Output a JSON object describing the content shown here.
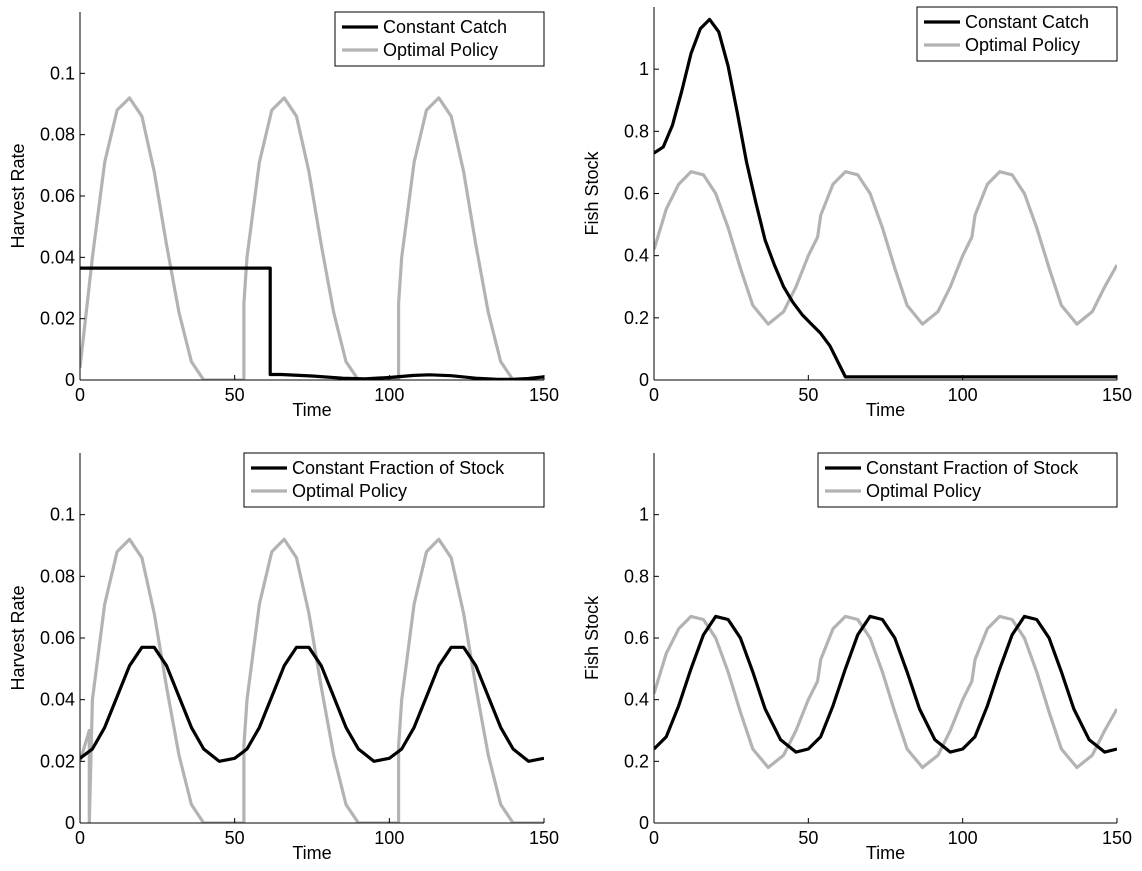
{
  "chart_data": [
    {
      "type": "line",
      "xlabel": "Time",
      "ylabel": "Harvest Rate",
      "xlim": [
        0,
        150
      ],
      "ylim": [
        0,
        0.12
      ],
      "xticks": [
        0,
        50,
        100,
        150
      ],
      "xtick_labels": [
        "0",
        "50",
        "100",
        "150"
      ],
      "yticks": [
        0,
        0.02,
        0.04,
        0.06,
        0.08,
        0.1
      ],
      "ytick_labels": [
        "0",
        "0.02",
        "0.04",
        "0.06",
        "0.08",
        "0.1"
      ],
      "grid": false,
      "legend_position": "top-right",
      "series": [
        {
          "name": "Constant Catch",
          "color": "#000000",
          "x": [
            0,
            61.5,
            61.5,
            65,
            75,
            85,
            92,
            100,
            108,
            113,
            120,
            128,
            135,
            140,
            145,
            150
          ],
          "y": [
            0.0365,
            0.0365,
            0.0018,
            0.0018,
            0.0013,
            0.0006,
            0.0004,
            0.0008,
            0.0015,
            0.0017,
            0.0014,
            0.0006,
            0.0002,
            0.0002,
            0.0005,
            0.001
          ]
        },
        {
          "name": "Optimal Policy",
          "color": "#b3b3b3",
          "x": [
            0,
            4,
            8,
            12,
            16,
            20,
            24,
            28,
            32,
            36,
            40,
            53,
            53,
            54,
            58,
            62,
            66,
            70,
            74,
            78,
            82,
            86,
            90,
            103,
            103,
            104,
            108,
            112,
            116,
            120,
            124,
            128,
            132,
            136,
            140,
            150
          ],
          "y": [
            0.004,
            0.04,
            0.071,
            0.088,
            0.092,
            0.086,
            0.068,
            0.044,
            0.022,
            0.006,
            0,
            0,
            0.025,
            0.04,
            0.071,
            0.088,
            0.092,
            0.086,
            0.068,
            0.044,
            0.022,
            0.006,
            0,
            0,
            0.025,
            0.04,
            0.071,
            0.088,
            0.092,
            0.086,
            0.068,
            0.044,
            0.022,
            0.006,
            0,
            0
          ]
        }
      ]
    },
    {
      "type": "line",
      "xlabel": "Time",
      "ylabel": "Fish Stock",
      "xlim": [
        0,
        150
      ],
      "ylim": [
        0,
        1.2
      ],
      "xticks": [
        0,
        50,
        100,
        150
      ],
      "xtick_labels": [
        "0",
        "50",
        "100",
        "150"
      ],
      "yticks": [
        0,
        0.2,
        0.4,
        0.6,
        0.8,
        1
      ],
      "ytick_labels": [
        "0",
        "0.2",
        "0.4",
        "0.6",
        "0.8",
        "1"
      ],
      "grid": false,
      "legend_position": "top-right",
      "series": [
        {
          "name": "Constant Catch",
          "color": "#000000",
          "x": [
            0,
            3,
            6,
            9,
            12,
            15,
            18,
            21,
            24,
            27,
            30,
            33,
            36,
            39,
            42,
            45,
            48,
            51,
            54,
            57,
            60,
            62,
            64,
            150
          ],
          "y": [
            0.73,
            0.75,
            0.82,
            0.93,
            1.05,
            1.13,
            1.16,
            1.12,
            1.01,
            0.86,
            0.7,
            0.57,
            0.45,
            0.37,
            0.3,
            0.25,
            0.21,
            0.18,
            0.15,
            0.11,
            0.05,
            0.01,
            0.01,
            0.01
          ]
        },
        {
          "name": "Optimal Policy",
          "color": "#b3b3b3",
          "x": [
            0,
            4,
            8,
            12,
            16,
            20,
            24,
            28,
            32,
            37,
            42,
            46,
            50,
            53,
            54,
            58,
            62,
            66,
            70,
            74,
            78,
            82,
            87,
            92,
            96,
            100,
            103,
            104,
            108,
            112,
            116,
            120,
            124,
            128,
            132,
            137,
            142,
            146,
            150
          ],
          "y": [
            0.42,
            0.55,
            0.63,
            0.67,
            0.66,
            0.6,
            0.49,
            0.36,
            0.24,
            0.18,
            0.22,
            0.3,
            0.4,
            0.46,
            0.53,
            0.63,
            0.67,
            0.66,
            0.6,
            0.49,
            0.36,
            0.24,
            0.18,
            0.22,
            0.3,
            0.4,
            0.46,
            0.53,
            0.63,
            0.67,
            0.66,
            0.6,
            0.49,
            0.36,
            0.24,
            0.18,
            0.22,
            0.3,
            0.37
          ]
        }
      ]
    },
    {
      "type": "line",
      "xlabel": "Time",
      "ylabel": "Harvest Rate",
      "xlim": [
        0,
        150
      ],
      "ylim": [
        0,
        0.12
      ],
      "xticks": [
        0,
        50,
        100,
        150
      ],
      "xtick_labels": [
        "0",
        "50",
        "100",
        "150"
      ],
      "yticks": [
        0,
        0.02,
        0.04,
        0.06,
        0.08,
        0.1
      ],
      "ytick_labels": [
        "0",
        "0.02",
        "0.04",
        "0.06",
        "0.08",
        "0.1"
      ],
      "grid": false,
      "legend_position": "top-right",
      "series": [
        {
          "name": "Constant Fraction of Stock",
          "color": "#000000",
          "x": [
            0,
            4,
            8,
            12,
            16,
            20,
            24,
            28,
            32,
            36,
            40,
            45,
            50,
            54,
            58,
            62,
            66,
            70,
            74,
            78,
            82,
            86,
            90,
            95,
            100,
            104,
            108,
            112,
            116,
            120,
            124,
            128,
            132,
            136,
            140,
            145,
            150
          ],
          "y": [
            0.021,
            0.024,
            0.031,
            0.041,
            0.051,
            0.057,
            0.057,
            0.051,
            0.041,
            0.031,
            0.024,
            0.02,
            0.021,
            0.024,
            0.031,
            0.041,
            0.051,
            0.057,
            0.057,
            0.051,
            0.041,
            0.031,
            0.024,
            0.02,
            0.021,
            0.024,
            0.031,
            0.041,
            0.051,
            0.057,
            0.057,
            0.051,
            0.041,
            0.031,
            0.024,
            0.02,
            0.021
          ]
        },
        {
          "name": "Optimal Policy",
          "color": "#b3b3b3",
          "x": [
            0,
            3,
            3,
            4,
            8,
            12,
            16,
            20,
            24,
            28,
            32,
            36,
            40,
            53,
            53,
            54,
            58,
            62,
            66,
            70,
            74,
            78,
            82,
            86,
            90,
            103,
            103,
            104,
            108,
            112,
            116,
            120,
            124,
            128,
            132,
            136,
            140,
            150
          ],
          "y": [
            0.02,
            0.03,
            0,
            0.04,
            0.071,
            0.088,
            0.092,
            0.086,
            0.068,
            0.044,
            0.022,
            0.006,
            0,
            0,
            0.025,
            0.04,
            0.071,
            0.088,
            0.092,
            0.086,
            0.068,
            0.044,
            0.022,
            0.006,
            0,
            0,
            0.025,
            0.04,
            0.071,
            0.088,
            0.092,
            0.086,
            0.068,
            0.044,
            0.022,
            0.006,
            0,
            0
          ]
        }
      ]
    },
    {
      "type": "line",
      "xlabel": "Time",
      "ylabel": "Fish Stock",
      "xlim": [
        0,
        150
      ],
      "ylim": [
        0,
        1.2
      ],
      "xticks": [
        0,
        50,
        100,
        150
      ],
      "xtick_labels": [
        "0",
        "50",
        "100",
        "150"
      ],
      "yticks": [
        0,
        0.2,
        0.4,
        0.6,
        0.8,
        1
      ],
      "ytick_labels": [
        "0",
        "0.2",
        "0.4",
        "0.6",
        "0.8",
        "1"
      ],
      "grid": false,
      "legend_position": "top-right",
      "series": [
        {
          "name": "Constant Fraction of Stock",
          "color": "#000000",
          "x": [
            0,
            4,
            8,
            12,
            16,
            20,
            24,
            28,
            32,
            36,
            41,
            46,
            50,
            54,
            58,
            62,
            66,
            70,
            74,
            78,
            82,
            86,
            91,
            96,
            100,
            104,
            108,
            112,
            116,
            120,
            124,
            128,
            132,
            136,
            141,
            146,
            150
          ],
          "y": [
            0.24,
            0.28,
            0.38,
            0.5,
            0.61,
            0.67,
            0.66,
            0.6,
            0.49,
            0.37,
            0.27,
            0.23,
            0.24,
            0.28,
            0.38,
            0.5,
            0.61,
            0.67,
            0.66,
            0.6,
            0.49,
            0.37,
            0.27,
            0.23,
            0.24,
            0.28,
            0.38,
            0.5,
            0.61,
            0.67,
            0.66,
            0.6,
            0.49,
            0.37,
            0.27,
            0.23,
            0.24
          ]
        },
        {
          "name": "Optimal Policy",
          "color": "#b3b3b3",
          "x": [
            0,
            4,
            8,
            12,
            16,
            20,
            24,
            28,
            32,
            37,
            42,
            46,
            50,
            53,
            54,
            58,
            62,
            66,
            70,
            74,
            78,
            82,
            87,
            92,
            96,
            100,
            103,
            104,
            108,
            112,
            116,
            120,
            124,
            128,
            132,
            137,
            142,
            146,
            150
          ],
          "y": [
            0.42,
            0.55,
            0.63,
            0.67,
            0.66,
            0.6,
            0.49,
            0.36,
            0.24,
            0.18,
            0.22,
            0.3,
            0.4,
            0.46,
            0.53,
            0.63,
            0.67,
            0.66,
            0.6,
            0.49,
            0.36,
            0.24,
            0.18,
            0.22,
            0.3,
            0.4,
            0.46,
            0.53,
            0.63,
            0.67,
            0.66,
            0.6,
            0.49,
            0.36,
            0.24,
            0.18,
            0.22,
            0.3,
            0.37
          ]
        }
      ]
    }
  ]
}
